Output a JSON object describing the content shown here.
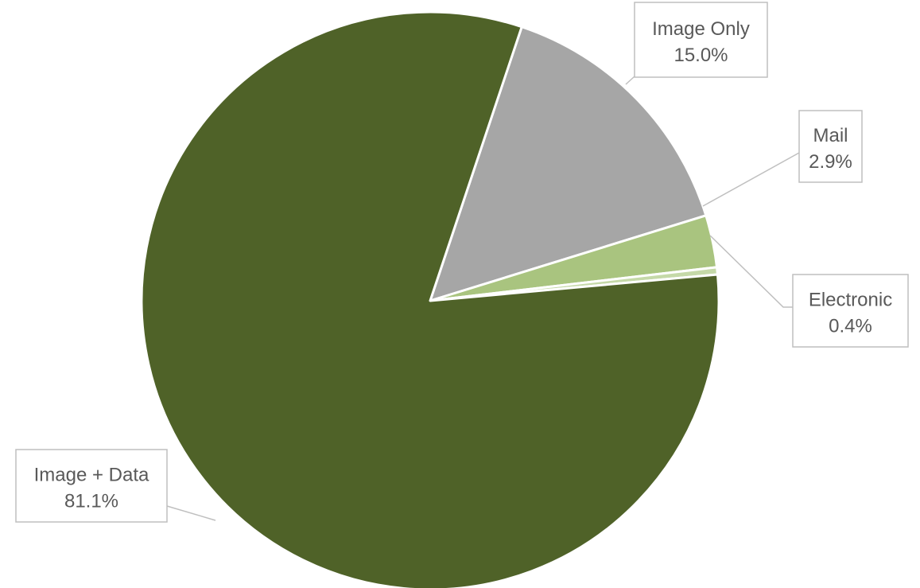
{
  "chart_data": {
    "type": "pie",
    "title": "",
    "legend": "none",
    "slices": [
      {
        "label": "Image Only",
        "value": 15.0,
        "display": "15.0%",
        "color": "#a6a6a6"
      },
      {
        "label": "Mail",
        "value": 2.9,
        "display": "2.9%",
        "color": "#a9c47f"
      },
      {
        "label": "Electronic",
        "value": 0.4,
        "display": "0.4%",
        "color": "#c5d9a8"
      },
      {
        "label": "Image + Data",
        "value": 81.1,
        "display": "81.1%",
        "color": "#4f6228"
      }
    ]
  }
}
